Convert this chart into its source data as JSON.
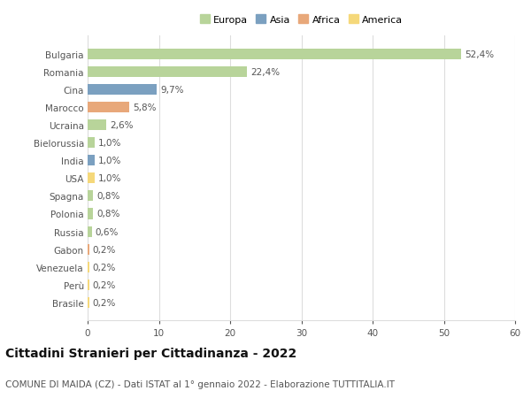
{
  "categories": [
    "Brasile",
    "Perù",
    "Venezuela",
    "Gabon",
    "Russia",
    "Polonia",
    "Spagna",
    "USA",
    "India",
    "Bielorussia",
    "Ucraina",
    "Marocco",
    "Cina",
    "Romania",
    "Bulgaria"
  ],
  "values": [
    0.2,
    0.2,
    0.2,
    0.2,
    0.6,
    0.8,
    0.8,
    1.0,
    1.0,
    1.0,
    2.6,
    5.8,
    9.7,
    22.4,
    52.4
  ],
  "colors": [
    "#f5d87a",
    "#f5d87a",
    "#f5d87a",
    "#e8a87a",
    "#b8d49a",
    "#b8d49a",
    "#b8d49a",
    "#f5d87a",
    "#7ba0c0",
    "#b8d49a",
    "#b8d49a",
    "#e8a87a",
    "#7ba0c0",
    "#b8d49a",
    "#b8d49a"
  ],
  "labels": [
    "0,2%",
    "0,2%",
    "0,2%",
    "0,2%",
    "0,6%",
    "0,8%",
    "0,8%",
    "1,0%",
    "1,0%",
    "1,0%",
    "2,6%",
    "5,8%",
    "9,7%",
    "22,4%",
    "52,4%"
  ],
  "legend_labels": [
    "Europa",
    "Asia",
    "Africa",
    "America"
  ],
  "legend_colors": [
    "#b8d49a",
    "#7ba0c0",
    "#e8a87a",
    "#f5d87a"
  ],
  "title": "Cittadini Stranieri per Cittadinanza - 2022",
  "subtitle": "COMUNE DI MAIDA (CZ) - Dati ISTAT al 1° gennaio 2022 - Elaborazione TUTTITALIA.IT",
  "xlim": [
    0,
    60
  ],
  "xticks": [
    0,
    10,
    20,
    30,
    40,
    50,
    60
  ],
  "background_color": "#ffffff",
  "grid_color": "#dddddd",
  "title_fontsize": 10,
  "subtitle_fontsize": 7.5,
  "label_fontsize": 7.5,
  "tick_fontsize": 7.5,
  "legend_fontsize": 8
}
